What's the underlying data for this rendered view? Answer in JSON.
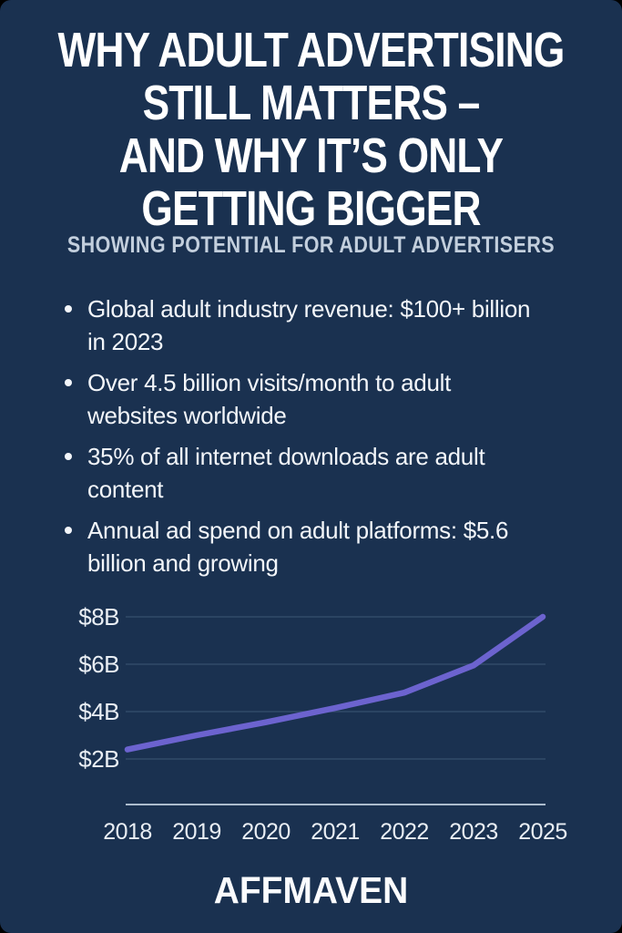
{
  "page": {
    "background_color": "#1a3150",
    "text_color": "#ffffff"
  },
  "header": {
    "title": "WHY ADULT ADVERTISING\nSTILL MATTERS –\nAND WHY IT’S ONLY\nGETTING BIGGER",
    "subtitle": "SHOWING POTENTIAL FOR ADULT ADVERTISERS"
  },
  "bullets": [
    {
      "text": "Global adult industry revenue: $100+ billion\nin 2023"
    },
    {
      "text": "Over 4.5 billion visits/month to adult\nwebsites worldwide"
    },
    {
      "text": "35% of all internet downloads are adult\ncontent"
    },
    {
      "text": "Annual ad spend on adult platforms: $5.6\nbillion and growing"
    }
  ],
  "chart_data": {
    "type": "line",
    "title": "",
    "categories": [
      "2018",
      "2019",
      "2020",
      "2021",
      "2022",
      "2023",
      "2025"
    ],
    "values": [
      2.4,
      3.0,
      3.55,
      4.15,
      4.8,
      5.95,
      8.0
    ],
    "unit": "$B",
    "y_ticks": [
      {
        "label": "$2B",
        "value": 2
      },
      {
        "label": "$4B",
        "value": 4
      },
      {
        "label": "$6B",
        "value": 6
      },
      {
        "label": "$8B",
        "value": 8
      }
    ],
    "ylim": [
      0,
      8.6
    ],
    "grid": true,
    "legend": "none",
    "line_color": "#6c63cf",
    "axis_color": "#bcccdb",
    "grid_color": "#44607e",
    "label_color": "#e9eef4"
  },
  "footer": {
    "brand": "AFFMAVEN"
  }
}
